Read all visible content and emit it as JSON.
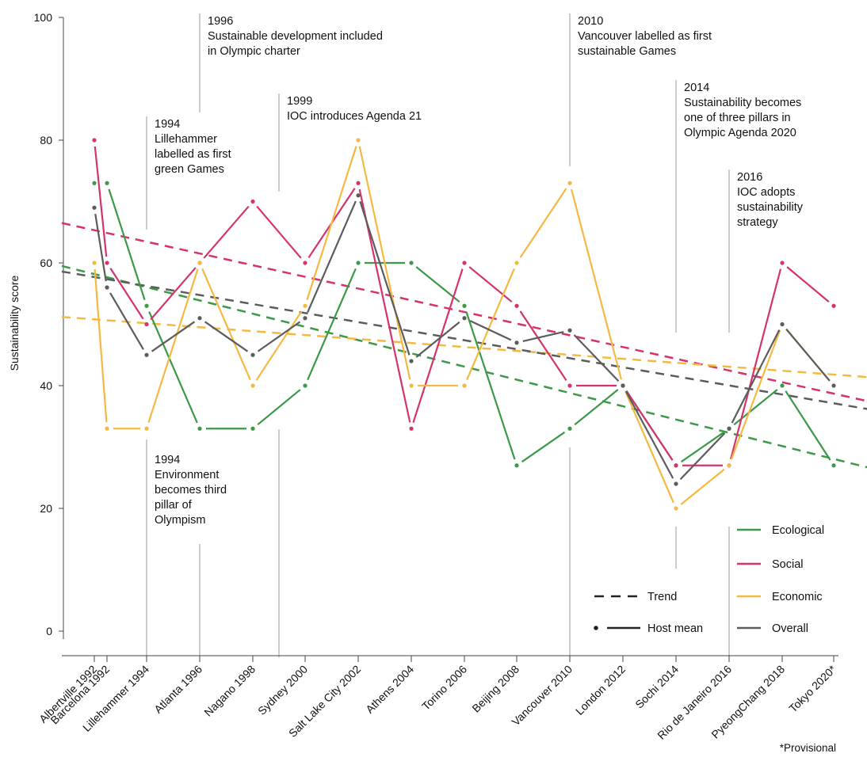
{
  "chart_data": {
    "type": "line",
    "ylabel": "Sustainability score",
    "ylim": [
      0,
      100
    ],
    "yticks": [
      "0",
      "20",
      "40",
      "60",
      "80",
      "100"
    ],
    "categories": [
      "Albertville 1992",
      "Barcelona 1992",
      "Lillehammer 1994",
      "Atlanta 1996",
      "Nagano 1998",
      "Sydney 2000",
      "Salt Lake City 2002",
      "Athens 2004",
      "Torino 2006",
      "Beijing 2008",
      "Vancouver 2010",
      "London 2012",
      "Sochi 2014",
      "Rio de Janeiro 2016",
      "PyeongChang 2018",
      "Tokyo 2020*"
    ],
    "series": [
      {
        "name": "Ecological",
        "color": "#3a9a48",
        "values": [
          73,
          73,
          53,
          33,
          33,
          40,
          60,
          60,
          53,
          27,
          33,
          40,
          27,
          33,
          40,
          27
        ],
        "trend": [
          59.5,
          26.7
        ]
      },
      {
        "name": "Social",
        "color": "#d6336c",
        "values": [
          80,
          60,
          50,
          60,
          70,
          60,
          73,
          33,
          60,
          53,
          40,
          40,
          27,
          27,
          60,
          53
        ],
        "trend": [
          66.5,
          37.5
        ]
      },
      {
        "name": "Economic",
        "color": "#f5b942",
        "values": [
          60,
          33,
          33,
          60,
          40,
          53,
          80,
          40,
          40,
          60,
          73,
          40,
          20,
          27,
          50,
          40
        ],
        "trend": [
          51.2,
          41.4
        ]
      },
      {
        "name": "Overall",
        "color": "#5c5c5c",
        "values": [
          69,
          56,
          45,
          51,
          45,
          51,
          71,
          44,
          51,
          47,
          49,
          40,
          24,
          33,
          50,
          40
        ],
        "trend": [
          58.6,
          36.2
        ]
      }
    ],
    "legend": {
      "trend_label": "Trend",
      "mean_label": "Host mean",
      "position": "bottom-right"
    },
    "annotations": [
      {
        "category_index": 2,
        "position": "above",
        "lines": [
          "1994",
          "Lillehammer",
          "labelled as first",
          "green Games"
        ]
      },
      {
        "category_index": 3,
        "position": "above",
        "lines": [
          "1996",
          "Sustainable development included",
          "in Olympic charter"
        ]
      },
      {
        "category_index": 5,
        "position": "above",
        "lines": [
          "1999",
          "IOC introduces Agenda 21"
        ]
      },
      {
        "category_index": 10,
        "position": "above",
        "lines": [
          "2010",
          "Vancouver labelled as first",
          "sustainable Games"
        ]
      },
      {
        "category_index": 12,
        "position": "above",
        "lines": [
          "2014",
          "Sustainability becomes",
          "one of three pillars in",
          "Olympic Agenda 2020"
        ]
      },
      {
        "category_index": 13,
        "position": "above",
        "lines": [
          "2016",
          "IOC adopts",
          "sustainability",
          "strategy"
        ]
      },
      {
        "category_index": 2,
        "position": "below",
        "lines": [
          "1994",
          "Environment",
          "becomes third",
          "pillar of",
          "Olympism"
        ]
      }
    ],
    "footnote": "*Provisional"
  }
}
